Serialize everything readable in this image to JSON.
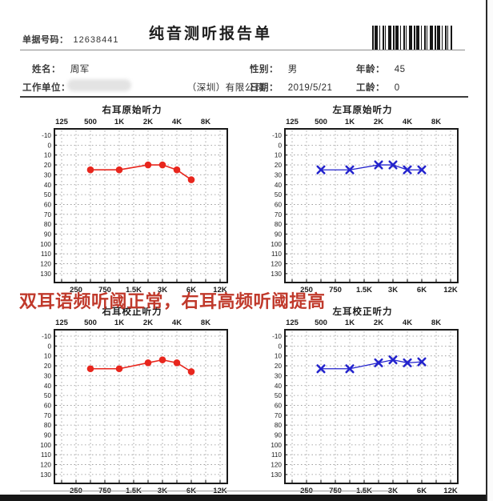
{
  "header": {
    "doc_number_label": "单据号码：",
    "doc_number": "12638441",
    "title": "纯音测听报告单"
  },
  "patient": {
    "name_label": "姓名：",
    "name": "周军",
    "gender_label": "性别：",
    "gender": "男",
    "age_label": "年龄：",
    "age": "45",
    "work_unit_label": "工作单位：",
    "work_unit_visible": "（深圳）有限公司",
    "date_label": "日期：",
    "date": "2019/5/21",
    "work_years_label": "工龄：",
    "work_years": "0"
  },
  "annotation": {
    "text": "双耳语频听阈正常，右耳高频听阈提高",
    "color": "#c0392b"
  },
  "colors": {
    "right_ear_series": "#e8261d",
    "left_ear_series": "#2323cd",
    "grid": "#8f8f8f",
    "axis_box": "#1a1a1a",
    "tick_text": "#1c1c1c"
  },
  "axis": {
    "freq_columns": [
      "125",
      "250",
      "500",
      "750",
      "1K",
      "1.5K",
      "2K",
      "3K",
      "4K",
      "6K",
      "8K",
      "12K"
    ],
    "top_tick_cols": [
      0,
      2,
      4,
      6,
      8,
      10
    ],
    "bottom_tick_cols": [
      1,
      3,
      5,
      7,
      9,
      11
    ],
    "y_min": -10,
    "y_max": 130,
    "y_step": 10
  },
  "chart_data": [
    {
      "type": "line",
      "title": "右耳原始听力",
      "marker": "circle",
      "color": "#e8261d",
      "x_hz": [
        500,
        1000,
        2000,
        3000,
        4000,
        6000
      ],
      "point_cols": [
        2,
        4,
        6,
        7,
        8,
        9
      ],
      "values_db": [
        25,
        25,
        20,
        20,
        25,
        35
      ],
      "ylim": [
        -10,
        130
      ],
      "grid": true,
      "legend": "none"
    },
    {
      "type": "line",
      "title": "左耳原始听力",
      "marker": "x",
      "color": "#2323cd",
      "x_hz": [
        500,
        1000,
        2000,
        3000,
        4000,
        6000
      ],
      "point_cols": [
        2,
        4,
        6,
        7,
        8,
        9
      ],
      "values_db": [
        25,
        25,
        20,
        20,
        25,
        25
      ],
      "ylim": [
        -10,
        130
      ],
      "grid": true,
      "legend": "none"
    },
    {
      "type": "line",
      "title": "右耳校正听力",
      "marker": "circle",
      "color": "#e8261d",
      "x_hz": [
        500,
        1000,
        2000,
        3000,
        4000,
        6000
      ],
      "point_cols": [
        2,
        4,
        6,
        7,
        8,
        9
      ],
      "values_db": [
        23,
        23,
        17,
        14,
        17,
        26
      ],
      "ylim": [
        -10,
        130
      ],
      "grid": true,
      "legend": "none"
    },
    {
      "type": "line",
      "title": "左耳校正听力",
      "marker": "x",
      "color": "#2323cd",
      "x_hz": [
        500,
        1000,
        2000,
        3000,
        4000,
        6000
      ],
      "point_cols": [
        2,
        4,
        6,
        7,
        8,
        9
      ],
      "values_db": [
        23,
        23,
        17,
        14,
        17,
        16
      ],
      "ylim": [
        -10,
        130
      ],
      "grid": true,
      "legend": "none"
    }
  ]
}
